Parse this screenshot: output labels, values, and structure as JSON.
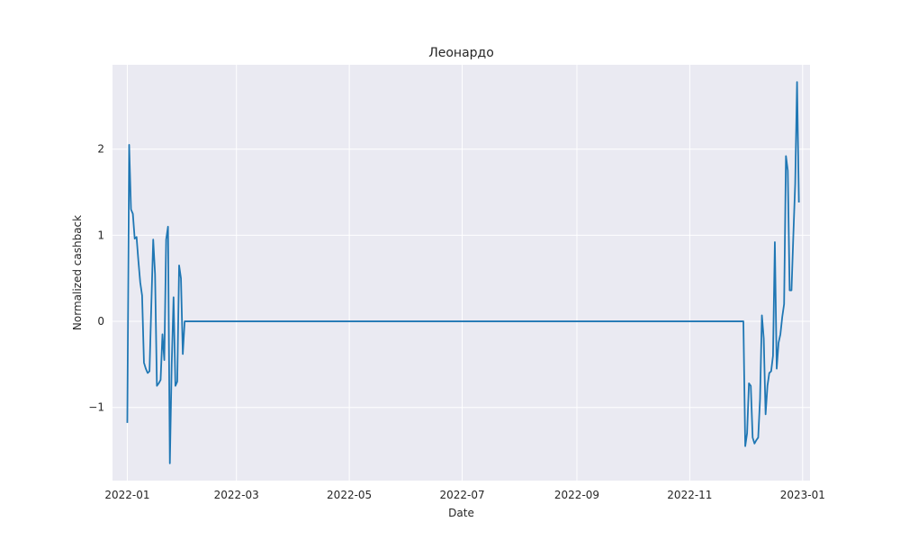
{
  "chart_data": {
    "type": "line",
    "title": "Леонардо",
    "xlabel": "Date",
    "ylabel": "Normalized cashback",
    "x_ticks": [
      "2022-01",
      "2022-03",
      "2022-05",
      "2022-07",
      "2022-09",
      "2022-11",
      "2023-01"
    ],
    "y_ticks": [
      -1,
      0,
      1,
      2
    ],
    "y_tick_labels": [
      "−1",
      "0",
      "1",
      "2"
    ],
    "xlim": [
      "2021-12-24",
      "2023-01-05"
    ],
    "ylim": [
      -1.85,
      2.98
    ],
    "grid": true,
    "background": "#eaeaf2",
    "grid_color": "#ffffff",
    "series": [
      {
        "color": "#1f77b4",
        "points": [
          [
            "2022-01-01",
            -1.18
          ],
          [
            "2022-01-02",
            2.05
          ],
          [
            "2022-01-03",
            1.3
          ],
          [
            "2022-01-04",
            1.25
          ],
          [
            "2022-01-05",
            0.96
          ],
          [
            "2022-01-06",
            0.98
          ],
          [
            "2022-01-07",
            0.7
          ],
          [
            "2022-01-08",
            0.45
          ],
          [
            "2022-01-09",
            0.3
          ],
          [
            "2022-01-10",
            -0.48
          ],
          [
            "2022-01-11",
            -0.55
          ],
          [
            "2022-01-12",
            -0.6
          ],
          [
            "2022-01-13",
            -0.58
          ],
          [
            "2022-01-14",
            0.2
          ],
          [
            "2022-01-15",
            0.95
          ],
          [
            "2022-01-16",
            0.55
          ],
          [
            "2022-01-17",
            -0.75
          ],
          [
            "2022-01-18",
            -0.72
          ],
          [
            "2022-01-19",
            -0.68
          ],
          [
            "2022-01-20",
            -0.15
          ],
          [
            "2022-01-21",
            -0.45
          ],
          [
            "2022-01-22",
            0.95
          ],
          [
            "2022-01-23",
            1.1
          ],
          [
            "2022-01-24",
            -1.65
          ],
          [
            "2022-01-25",
            -0.5
          ],
          [
            "2022-01-26",
            0.28
          ],
          [
            "2022-01-27",
            -0.75
          ],
          [
            "2022-01-28",
            -0.7
          ],
          [
            "2022-01-29",
            0.65
          ],
          [
            "2022-01-30",
            0.5
          ],
          [
            "2022-01-31",
            -0.38
          ],
          [
            "2022-02-01",
            0.0
          ],
          [
            "2022-11-30",
            0.0
          ],
          [
            "2022-12-01",
            -1.45
          ],
          [
            "2022-12-02",
            -1.3
          ],
          [
            "2022-12-03",
            -0.72
          ],
          [
            "2022-12-04",
            -0.75
          ],
          [
            "2022-12-05",
            -1.35
          ],
          [
            "2022-12-06",
            -1.42
          ],
          [
            "2022-12-07",
            -1.38
          ],
          [
            "2022-12-08",
            -1.35
          ],
          [
            "2022-12-09",
            -0.9
          ],
          [
            "2022-12-10",
            0.07
          ],
          [
            "2022-12-11",
            -0.2
          ],
          [
            "2022-12-12",
            -1.08
          ],
          [
            "2022-12-13",
            -0.75
          ],
          [
            "2022-12-14",
            -0.6
          ],
          [
            "2022-12-15",
            -0.58
          ],
          [
            "2022-12-16",
            -0.4
          ],
          [
            "2022-12-17",
            0.92
          ],
          [
            "2022-12-18",
            -0.55
          ],
          [
            "2022-12-19",
            -0.25
          ],
          [
            "2022-12-20",
            -0.15
          ],
          [
            "2022-12-21",
            0.05
          ],
          [
            "2022-12-22",
            0.2
          ],
          [
            "2022-12-23",
            1.92
          ],
          [
            "2022-12-24",
            1.75
          ],
          [
            "2022-12-25",
            0.36
          ],
          [
            "2022-12-26",
            0.36
          ],
          [
            "2022-12-27",
            1.0
          ],
          [
            "2022-12-28",
            1.6
          ],
          [
            "2022-12-29",
            2.78
          ],
          [
            "2022-12-30",
            1.38
          ]
        ]
      }
    ]
  }
}
